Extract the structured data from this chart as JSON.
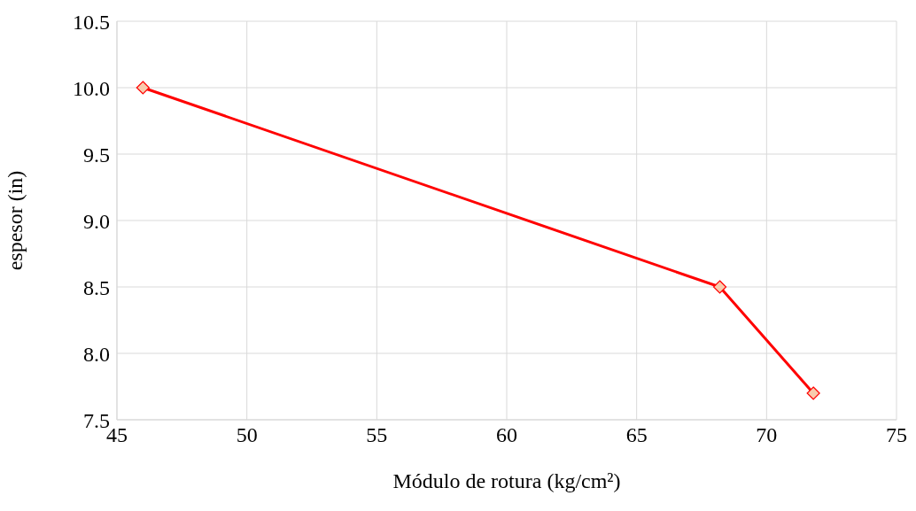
{
  "chart_data": {
    "type": "line",
    "xlabel": "Módulo de rotura (kg/cm²)",
    "ylabel": "espesor (in)",
    "series": [
      {
        "color": "#ff0000",
        "x": [
          46,
          68.2,
          71.8
        ],
        "values": [
          10.0,
          8.5,
          7.7
        ]
      }
    ],
    "xlim": [
      45,
      75
    ],
    "xticks": [
      45,
      50,
      55,
      60,
      65,
      70,
      75
    ],
    "ylim": [
      7.5,
      10.5
    ],
    "yticks": [
      {
        "value": 7.5,
        "label": "7.5"
      },
      {
        "value": 8.0,
        "label": "8.0"
      },
      {
        "value": 8.5,
        "label": "8.5"
      },
      {
        "value": 9.0,
        "label": "9.0"
      },
      {
        "value": 9.5,
        "label": "9.5"
      },
      {
        "value": 10.0,
        "label": "10.0"
      },
      {
        "value": 10.5,
        "label": "10.5"
      }
    ],
    "grid": true,
    "legend": false,
    "marker": "diamond",
    "line_style": "solid"
  }
}
